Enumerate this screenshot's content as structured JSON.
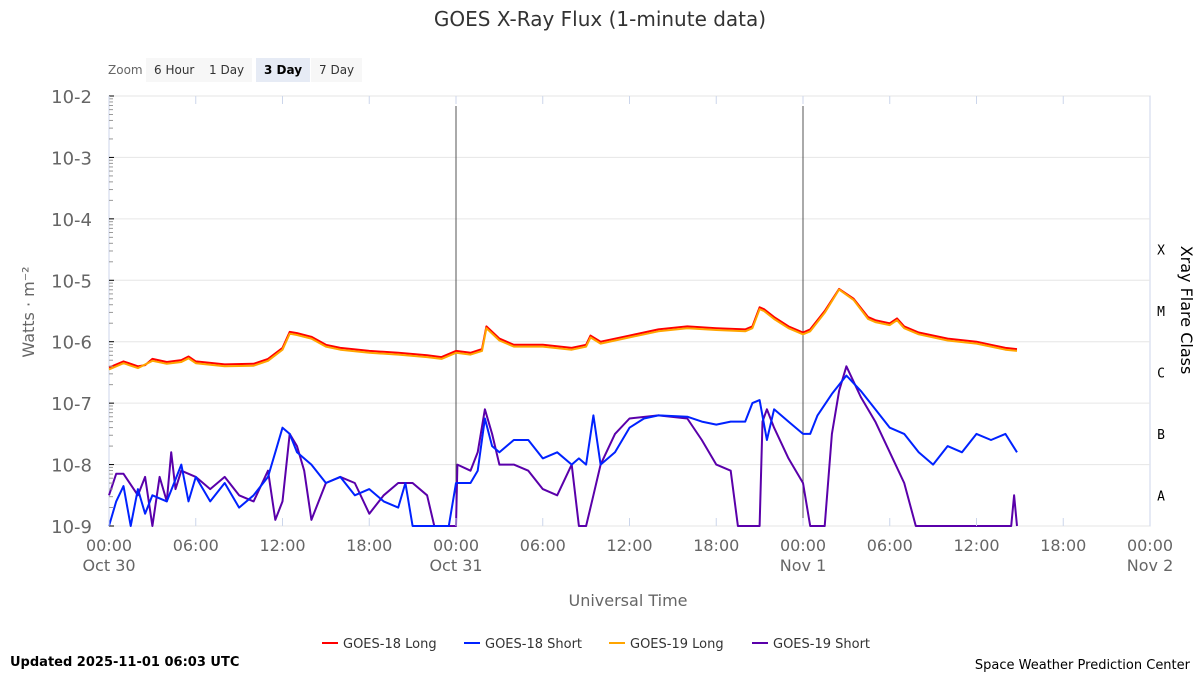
{
  "chart_data": {
    "type": "line",
    "title": "GOES X-Ray Flux (1-minute data)",
    "xlabel": "Universal Time",
    "ylabel": "Watts · m⁻²",
    "y2label": "Xray Flare Class",
    "yscale": "log",
    "ylim_log10": [
      -9,
      -2
    ],
    "xlim_hours": [
      0,
      72
    ],
    "x_start": "2025-10-30 00:00 UTC",
    "ytick_labels": [
      "10-2",
      "10-3",
      "10-4",
      "10-5",
      "10-6",
      "10-7",
      "10-8",
      "10-9"
    ],
    "xtick_labels": [
      [
        "00:00",
        "Oct 30"
      ],
      [
        "06:00",
        ""
      ],
      [
        "12:00",
        ""
      ],
      [
        "18:00",
        ""
      ],
      [
        "00:00",
        "Oct 31"
      ],
      [
        "06:00",
        ""
      ],
      [
        "12:00",
        ""
      ],
      [
        "18:00",
        ""
      ],
      [
        "00:00",
        "Nov 1"
      ],
      [
        "06:00",
        ""
      ],
      [
        "12:00",
        ""
      ],
      [
        "18:00",
        ""
      ],
      [
        "00:00",
        "Nov 2"
      ]
    ],
    "flare_classes": [
      {
        "label": "X",
        "log10": -4.5
      },
      {
        "label": "M",
        "log10": -5.5
      },
      {
        "label": "C",
        "log10": -6.5
      },
      {
        "label": "B",
        "log10": -7.5
      },
      {
        "label": "A",
        "log10": -8.5
      }
    ],
    "day_markers_hours": [
      24,
      48
    ],
    "series": [
      {
        "name": "GOES-18 Long",
        "color": "#ff0000",
        "points": [
          [
            0,
            -6.42
          ],
          [
            1,
            -6.32
          ],
          [
            2,
            -6.4
          ],
          [
            2.5,
            -6.38
          ],
          [
            3,
            -6.28
          ],
          [
            4,
            -6.33
          ],
          [
            5,
            -6.3
          ],
          [
            5.5,
            -6.24
          ],
          [
            6,
            -6.32
          ],
          [
            8,
            -6.37
          ],
          [
            10,
            -6.36
          ],
          [
            11,
            -6.28
          ],
          [
            12,
            -6.1
          ],
          [
            12.5,
            -5.84
          ],
          [
            13,
            -5.86
          ],
          [
            14,
            -5.92
          ],
          [
            15,
            -6.05
          ],
          [
            16,
            -6.1
          ],
          [
            18,
            -6.15
          ],
          [
            20,
            -6.18
          ],
          [
            22,
            -6.22
          ],
          [
            23,
            -6.25
          ],
          [
            24,
            -6.15
          ],
          [
            25,
            -6.18
          ],
          [
            25.8,
            -6.12
          ],
          [
            26.1,
            -5.75
          ],
          [
            27,
            -5.95
          ],
          [
            28,
            -6.05
          ],
          [
            30,
            -6.05
          ],
          [
            32,
            -6.1
          ],
          [
            33,
            -6.05
          ],
          [
            33.3,
            -5.9
          ],
          [
            34,
            -6.0
          ],
          [
            36,
            -5.9
          ],
          [
            38,
            -5.8
          ],
          [
            40,
            -5.75
          ],
          [
            42,
            -5.78
          ],
          [
            44,
            -5.8
          ],
          [
            44.5,
            -5.75
          ],
          [
            45,
            -5.44
          ],
          [
            45.3,
            -5.47
          ],
          [
            46,
            -5.6
          ],
          [
            47,
            -5.75
          ],
          [
            48,
            -5.85
          ],
          [
            48.5,
            -5.8
          ],
          [
            49.5,
            -5.5
          ],
          [
            50.5,
            -5.14
          ],
          [
            51.5,
            -5.3
          ],
          [
            52.5,
            -5.6
          ],
          [
            53,
            -5.65
          ],
          [
            54,
            -5.7
          ],
          [
            54.5,
            -5.62
          ],
          [
            55,
            -5.75
          ],
          [
            56,
            -5.85
          ],
          [
            58,
            -5.95
          ],
          [
            60,
            -6.0
          ],
          [
            61,
            -6.05
          ],
          [
            62,
            -6.1
          ],
          [
            62.8,
            -6.12
          ]
        ]
      },
      {
        "name": "GOES-18 Short",
        "color": "#0022ff",
        "points": [
          [
            0,
            -9.0
          ],
          [
            0.5,
            -8.6
          ],
          [
            1,
            -8.35
          ],
          [
            1.5,
            -9
          ],
          [
            2,
            -8.4
          ],
          [
            2.5,
            -8.8
          ],
          [
            3,
            -8.5
          ],
          [
            4,
            -8.6
          ],
          [
            4.5,
            -8.3
          ],
          [
            5,
            -8.0
          ],
          [
            5.5,
            -8.6
          ],
          [
            6,
            -8.2
          ],
          [
            7,
            -8.6
          ],
          [
            8,
            -8.3
          ],
          [
            9,
            -8.7
          ],
          [
            10,
            -8.5
          ],
          [
            11,
            -8.2
          ],
          [
            11.5,
            -7.8
          ],
          [
            12,
            -7.4
          ],
          [
            12.5,
            -7.5
          ],
          [
            13,
            -7.8
          ],
          [
            14,
            -8.0
          ],
          [
            15,
            -8.3
          ],
          [
            16,
            -8.2
          ],
          [
            17,
            -8.5
          ],
          [
            18,
            -8.4
          ],
          [
            19,
            -8.6
          ],
          [
            20,
            -8.7
          ],
          [
            20.5,
            -8.3
          ],
          [
            21,
            -9.0
          ],
          [
            23.5,
            -9.0
          ],
          [
            24,
            -8.3
          ],
          [
            25,
            -8.3
          ],
          [
            25.5,
            -8.1
          ],
          [
            26,
            -7.25
          ],
          [
            26.5,
            -7.7
          ],
          [
            27,
            -7.8
          ],
          [
            28,
            -7.6
          ],
          [
            29,
            -7.6
          ],
          [
            30,
            -7.9
          ],
          [
            31,
            -7.8
          ],
          [
            32,
            -8.0
          ],
          [
            32.5,
            -7.9
          ],
          [
            33,
            -8.0
          ],
          [
            33.5,
            -7.2
          ],
          [
            34,
            -8.0
          ],
          [
            35,
            -7.8
          ],
          [
            36,
            -7.4
          ],
          [
            37,
            -7.25
          ],
          [
            38,
            -7.2
          ],
          [
            40,
            -7.22
          ],
          [
            41,
            -7.3
          ],
          [
            42,
            -7.35
          ],
          [
            43,
            -7.3
          ],
          [
            44,
            -7.3
          ],
          [
            44.5,
            -7.0
          ],
          [
            45,
            -6.95
          ],
          [
            45.5,
            -7.6
          ],
          [
            46,
            -7.1
          ],
          [
            47,
            -7.3
          ],
          [
            48,
            -7.5
          ],
          [
            48.5,
            -7.5
          ],
          [
            49,
            -7.2
          ],
          [
            50,
            -6.85
          ],
          [
            51,
            -6.55
          ],
          [
            52,
            -6.8
          ],
          [
            53,
            -7.1
          ],
          [
            54,
            -7.4
          ],
          [
            55,
            -7.5
          ],
          [
            56,
            -7.8
          ],
          [
            57,
            -8.0
          ],
          [
            58,
            -7.7
          ],
          [
            59,
            -7.8
          ],
          [
            60,
            -7.5
          ],
          [
            61,
            -7.6
          ],
          [
            62,
            -7.5
          ],
          [
            62.8,
            -7.8
          ]
        ]
      },
      {
        "name": "GOES-19 Long",
        "color": "#ffa500",
        "points": [
          [
            0,
            -6.45
          ],
          [
            1,
            -6.35
          ],
          [
            2,
            -6.43
          ],
          [
            3,
            -6.31
          ],
          [
            4,
            -6.36
          ],
          [
            5,
            -6.33
          ],
          [
            5.5,
            -6.27
          ],
          [
            6,
            -6.35
          ],
          [
            8,
            -6.4
          ],
          [
            10,
            -6.39
          ],
          [
            11,
            -6.31
          ],
          [
            12,
            -6.13
          ],
          [
            12.5,
            -5.87
          ],
          [
            13,
            -5.89
          ],
          [
            14,
            -5.95
          ],
          [
            15,
            -6.08
          ],
          [
            16,
            -6.13
          ],
          [
            18,
            -6.18
          ],
          [
            20,
            -6.21
          ],
          [
            22,
            -6.25
          ],
          [
            23,
            -6.28
          ],
          [
            24,
            -6.18
          ],
          [
            25,
            -6.21
          ],
          [
            25.8,
            -6.15
          ],
          [
            26.1,
            -5.78
          ],
          [
            27,
            -5.98
          ],
          [
            28,
            -6.08
          ],
          [
            30,
            -6.08
          ],
          [
            32,
            -6.13
          ],
          [
            33,
            -6.08
          ],
          [
            33.3,
            -5.93
          ],
          [
            34,
            -6.03
          ],
          [
            36,
            -5.93
          ],
          [
            38,
            -5.83
          ],
          [
            40,
            -5.78
          ],
          [
            42,
            -5.81
          ],
          [
            44,
            -5.83
          ],
          [
            44.5,
            -5.78
          ],
          [
            45,
            -5.47
          ],
          [
            45.3,
            -5.5
          ],
          [
            46,
            -5.63
          ],
          [
            47,
            -5.78
          ],
          [
            48,
            -5.88
          ],
          [
            48.5,
            -5.83
          ],
          [
            49.5,
            -5.53
          ],
          [
            50.5,
            -5.15
          ],
          [
            51.5,
            -5.32
          ],
          [
            52.5,
            -5.63
          ],
          [
            53,
            -5.68
          ],
          [
            54,
            -5.73
          ],
          [
            54.5,
            -5.65
          ],
          [
            55,
            -5.78
          ],
          [
            56,
            -5.88
          ],
          [
            58,
            -5.98
          ],
          [
            60,
            -6.03
          ],
          [
            61,
            -6.08
          ],
          [
            62,
            -6.13
          ],
          [
            62.8,
            -6.15
          ]
        ]
      },
      {
        "name": "GOES-19 Short",
        "color": "#5a00aa",
        "points": [
          [
            0,
            -8.5
          ],
          [
            0.5,
            -8.15
          ],
          [
            1,
            -8.15
          ],
          [
            2,
            -8.5
          ],
          [
            2.5,
            -8.2
          ],
          [
            3,
            -9.0
          ],
          [
            3.5,
            -8.2
          ],
          [
            4,
            -8.6
          ],
          [
            4.3,
            -7.8
          ],
          [
            4.6,
            -8.4
          ],
          [
            5,
            -8.1
          ],
          [
            6,
            -8.2
          ],
          [
            7,
            -8.4
          ],
          [
            8,
            -8.2
          ],
          [
            9,
            -8.5
          ],
          [
            10,
            -8.6
          ],
          [
            11,
            -8.1
          ],
          [
            11.5,
            -8.9
          ],
          [
            12,
            -8.6
          ],
          [
            12.5,
            -7.5
          ],
          [
            13,
            -7.7
          ],
          [
            13.5,
            -8.1
          ],
          [
            14,
            -8.9
          ],
          [
            15,
            -8.3
          ],
          [
            16,
            -8.2
          ],
          [
            17,
            -8.3
          ],
          [
            18,
            -8.8
          ],
          [
            19,
            -8.5
          ],
          [
            20,
            -8.3
          ],
          [
            21,
            -8.3
          ],
          [
            22,
            -8.5
          ],
          [
            22.5,
            -9.0
          ],
          [
            24,
            -9.0
          ],
          [
            24.1,
            -8.0
          ],
          [
            25,
            -8.1
          ],
          [
            25.5,
            -7.8
          ],
          [
            26,
            -7.1
          ],
          [
            26.5,
            -7.5
          ],
          [
            27,
            -8.0
          ],
          [
            28,
            -8.0
          ],
          [
            29,
            -8.1
          ],
          [
            30,
            -8.4
          ],
          [
            31,
            -8.5
          ],
          [
            32,
            -8.0
          ],
          [
            32.5,
            -9.0
          ],
          [
            33,
            -9.0
          ],
          [
            33.5,
            -8.5
          ],
          [
            34,
            -8.0
          ],
          [
            35,
            -7.5
          ],
          [
            36,
            -7.25
          ],
          [
            38,
            -7.2
          ],
          [
            40,
            -7.25
          ],
          [
            41,
            -7.6
          ],
          [
            42,
            -8.0
          ],
          [
            43,
            -8.1
          ],
          [
            43.5,
            -9.0
          ],
          [
            45,
            -9.0
          ],
          [
            45.2,
            -7.3
          ],
          [
            45.5,
            -7.1
          ],
          [
            46,
            -7.4
          ],
          [
            47,
            -7.9
          ],
          [
            48,
            -8.3
          ],
          [
            48.5,
            -9.0
          ],
          [
            49.5,
            -9.0
          ],
          [
            50,
            -7.5
          ],
          [
            50.5,
            -6.8
          ],
          [
            51,
            -6.4
          ],
          [
            52,
            -6.9
          ],
          [
            53,
            -7.3
          ],
          [
            54,
            -7.8
          ],
          [
            55,
            -8.3
          ],
          [
            55.8,
            -9.0
          ],
          [
            62.4,
            -9.0
          ],
          [
            62.6,
            -8.5
          ],
          [
            62.8,
            -9.0
          ]
        ]
      }
    ]
  },
  "zoom": {
    "label": "Zoom",
    "buttons": [
      "6 Hour",
      "1 Day",
      "3 Day",
      "7 Day"
    ],
    "selected": "3 Day"
  },
  "footer": {
    "updated": "Updated 2025-11-01 06:03 UTC",
    "credit": "Space Weather Prediction Center"
  }
}
